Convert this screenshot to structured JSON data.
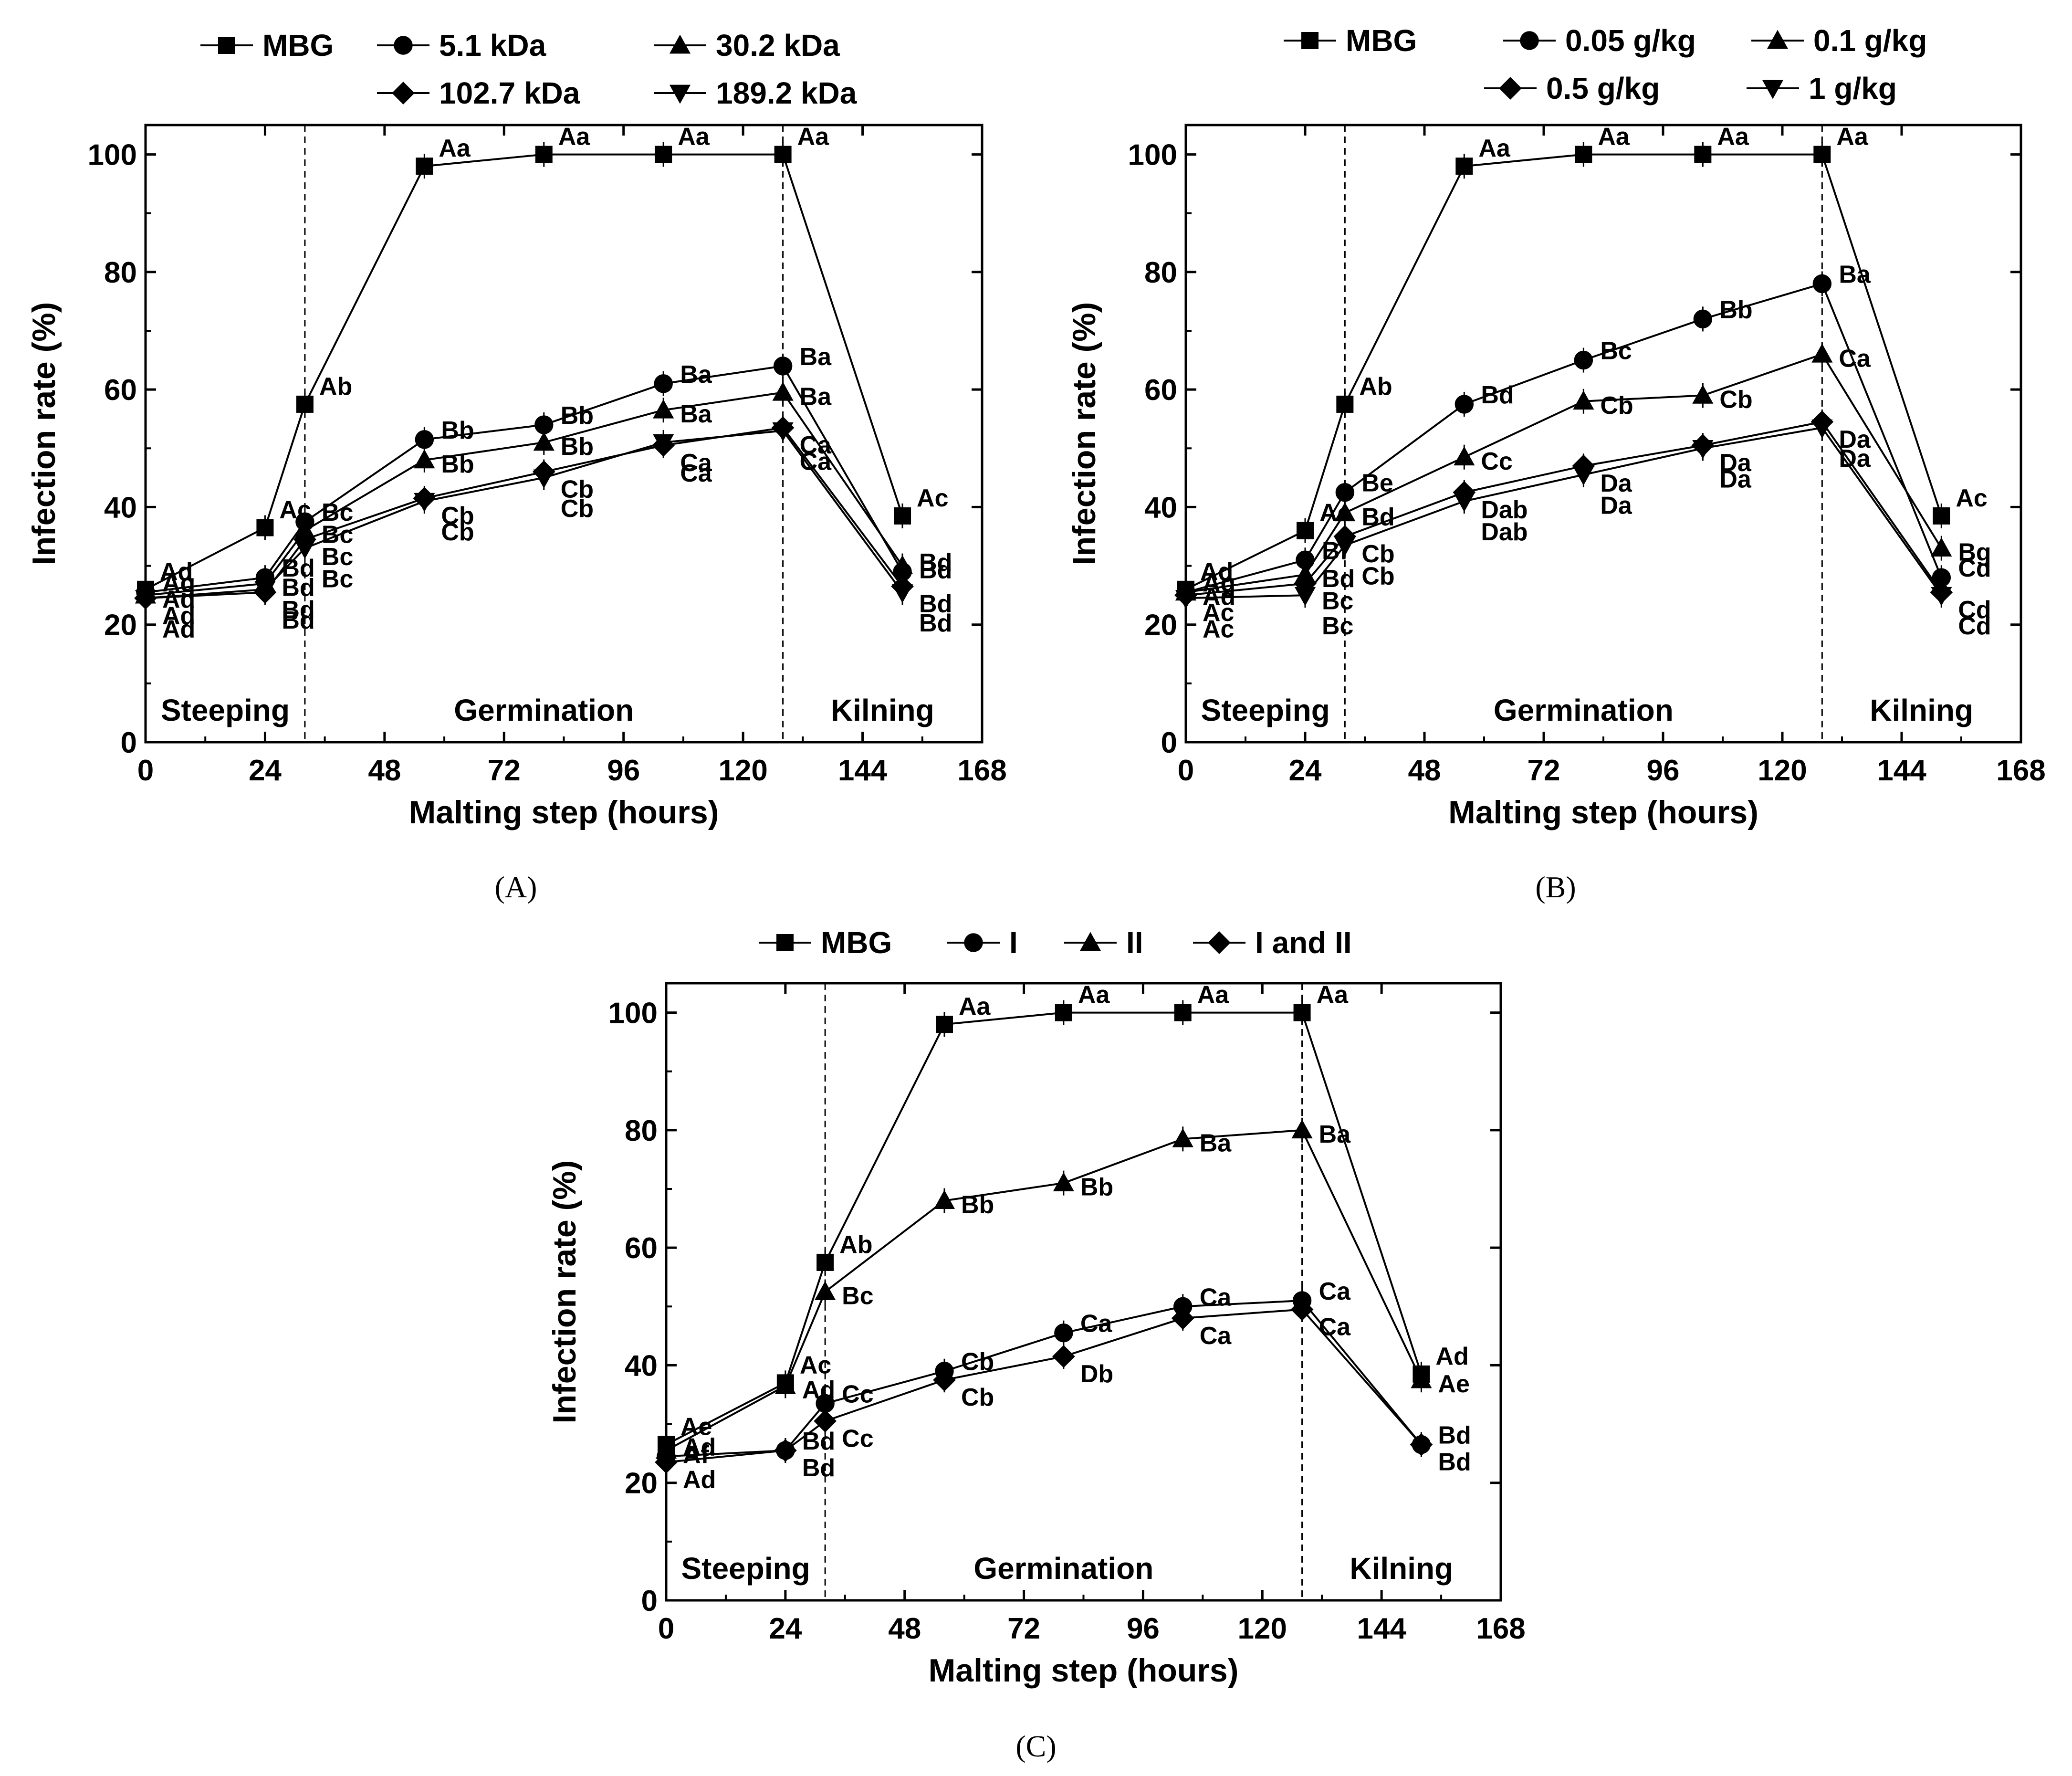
{
  "colors": {
    "line": "#000000",
    "background": "#ffffff"
  },
  "chart_data": [
    {
      "id": "A",
      "type": "line",
      "panel_label": "(A)",
      "xlabel": "Malting step (hours)",
      "ylabel": "Infection rate (%)",
      "xlim": [
        0,
        168
      ],
      "ylim": [
        0,
        105
      ],
      "xticks": [
        0,
        24,
        48,
        72,
        96,
        120,
        144,
        168
      ],
      "yticks": [
        0,
        20,
        40,
        60,
        80,
        100
      ],
      "x": [
        0,
        24,
        32,
        56,
        80,
        104,
        128,
        152
      ],
      "phase_dividers": [
        32,
        128
      ],
      "phases": [
        {
          "label": "Steeping",
          "x": 16
        },
        {
          "label": "Germination",
          "x": 80
        },
        {
          "label": "Kilning",
          "x": 148
        }
      ],
      "legend": {
        "rows": [
          [
            "MBG",
            "5.1 kDa",
            "30.2 kDa"
          ],
          [
            "102.7 kDa",
            "189.2 kDa"
          ]
        ]
      },
      "series": [
        {
          "name": "MBG",
          "marker": "square",
          "values": [
            26,
            36.5,
            57.5,
            98,
            100,
            100,
            100,
            38.5
          ],
          "labels": [
            "Ad",
            "Ac",
            "Ab",
            "Aa",
            "Aa",
            "Aa",
            "Aa",
            "Ac"
          ]
        },
        {
          "name": "5.1 kDa",
          "marker": "circle",
          "values": [
            25.5,
            28,
            37.5,
            51.5,
            54,
            61,
            64,
            29
          ],
          "labels": [
            "Ag",
            "Bd",
            "Bc",
            "Bb",
            "Bb",
            "Ba",
            "Ba",
            "Bd"
          ]
        },
        {
          "name": "30.2 kDa",
          "marker": "triangle-up",
          "values": [
            25,
            27,
            36,
            48,
            51,
            56.5,
            59.5,
            30
          ],
          "labels": [
            "Ad",
            "Bd",
            "Bc",
            "Bb",
            "Bb",
            "Ba",
            "Ba",
            "Bd"
          ]
        },
        {
          "name": "102.7 kDa",
          "marker": "diamond",
          "values": [
            24.5,
            25.5,
            34.5,
            41.5,
            46,
            50.5,
            53.5,
            26.5
          ],
          "labels": [
            "Ad",
            "Bd",
            "Bc",
            "Cb",
            "Cb",
            "Ca",
            "Ca",
            "Bd"
          ]
        },
        {
          "name": "189.2 kDa",
          "marker": "triangle-down",
          "values": [
            24.5,
            26,
            33,
            41,
            45,
            51,
            53,
            25.5
          ],
          "labels": [
            "Ad",
            "Bd",
            "Bc",
            "Cb",
            "Cb",
            "Ca",
            "Ca",
            "Bd"
          ]
        }
      ]
    },
    {
      "id": "B",
      "type": "line",
      "panel_label": "(B)",
      "xlabel": "Malting step (hours)",
      "ylabel": "Infection rate (%)",
      "xlim": [
        0,
        168
      ],
      "ylim": [
        0,
        105
      ],
      "xticks": [
        0,
        24,
        48,
        72,
        96,
        120,
        144,
        168
      ],
      "yticks": [
        0,
        20,
        40,
        60,
        80,
        100
      ],
      "x": [
        0,
        24,
        32,
        56,
        80,
        104,
        128,
        152
      ],
      "phase_dividers": [
        32,
        128
      ],
      "phases": [
        {
          "label": "Steeping",
          "x": 16
        },
        {
          "label": "Germination",
          "x": 80
        },
        {
          "label": "Kilning",
          "x": 148
        }
      ],
      "legend": {
        "rows": [
          [
            "MBG",
            "0.05 g/kg",
            "0.1 g/kg"
          ],
          [
            "0.5 g/kg",
            "1 g/kg"
          ]
        ]
      },
      "series": [
        {
          "name": "MBG",
          "marker": "square",
          "values": [
            26,
            36,
            57.5,
            98,
            100,
            100,
            100,
            38.5
          ],
          "labels": [
            "Ad",
            "Ac",
            "Ab",
            "Aa",
            "Aa",
            "Aa",
            "Aa",
            "Ac"
          ]
        },
        {
          "name": "0.05 g/kg",
          "marker": "circle",
          "values": [
            25.5,
            31,
            42.5,
            57.5,
            65,
            72,
            78,
            28
          ],
          "labels": [
            "Ag",
            "Bf",
            "Be",
            "Bd",
            "Bc",
            "Bb",
            "Ba",
            "Cd"
          ]
        },
        {
          "name": "0.1 g/kg",
          "marker": "triangle-up",
          "values": [
            25.5,
            28.5,
            39,
            48.5,
            58,
            59,
            66,
            33
          ],
          "labels": [
            "Ad",
            "Bd",
            "Bd",
            "Cc",
            "Cb",
            "Cb",
            "Ca",
            "Bg"
          ]
        },
        {
          "name": "0.5 g/kg",
          "marker": "diamond",
          "values": [
            25,
            27,
            35,
            42.5,
            47,
            50.5,
            54.5,
            25.5
          ],
          "labels": [
            "Ac",
            "Bc",
            "Cb",
            "Dab",
            "Da",
            "Da",
            "Da",
            "Cd"
          ]
        },
        {
          "name": "1 g/kg",
          "marker": "triangle-down",
          "values": [
            24.5,
            25,
            33.5,
            41,
            45.5,
            50,
            53.5,
            25
          ],
          "labels": [
            "Ac",
            "Bc",
            "Cb",
            "Dab",
            "Da",
            "Da",
            "Da",
            "Cd"
          ]
        }
      ]
    },
    {
      "id": "C",
      "type": "line",
      "panel_label": "(C)",
      "xlabel": "Malting step (hours)",
      "ylabel": "Infection rate (%)",
      "xlim": [
        0,
        168
      ],
      "ylim": [
        0,
        105
      ],
      "xticks": [
        0,
        24,
        48,
        72,
        96,
        120,
        144,
        168
      ],
      "yticks": [
        0,
        20,
        40,
        60,
        80,
        100
      ],
      "x": [
        0,
        24,
        32,
        56,
        80,
        104,
        128,
        152
      ],
      "phase_dividers": [
        32,
        128
      ],
      "phases": [
        {
          "label": "Steeping",
          "x": 16
        },
        {
          "label": "Germination",
          "x": 80
        },
        {
          "label": "Kilning",
          "x": 148
        }
      ],
      "legend": {
        "rows": [
          [
            "MBG",
            "I",
            "II",
            "I and II"
          ]
        ]
      },
      "series": [
        {
          "name": "MBG",
          "marker": "square",
          "values": [
            26.5,
            37,
            57.5,
            98,
            100,
            100,
            100,
            38.5
          ],
          "labels": [
            "Ae",
            "Ac",
            "Ab",
            "Aa",
            "Aa",
            "Aa",
            "Aa",
            "Ad"
          ]
        },
        {
          "name": "I",
          "marker": "circle",
          "values": [
            24.5,
            25.5,
            33.5,
            39,
            45.5,
            50,
            51,
            26.5
          ],
          "labels": [
            "Ad",
            "Bd",
            "Cc",
            "Cb",
            "Ca",
            "Ca",
            "Ca",
            "Bd"
          ]
        },
        {
          "name": "II",
          "marker": "triangle-up",
          "values": [
            25.5,
            36.5,
            52.5,
            68,
            71,
            78.5,
            80,
            37.5
          ],
          "labels": [
            "Af",
            "Ad",
            "Bc",
            "Bb",
            "Bb",
            "Ba",
            "Ba",
            "Ae"
          ]
        },
        {
          "name": "I and II",
          "marker": "diamond",
          "values": [
            23.5,
            25.5,
            30.5,
            37.5,
            41.5,
            48,
            49.5,
            26.5
          ],
          "labels": [
            "Ad",
            "Bd",
            "Cc",
            "Cb",
            "Db",
            "Ca",
            "Ca",
            "Bd"
          ]
        }
      ]
    }
  ]
}
